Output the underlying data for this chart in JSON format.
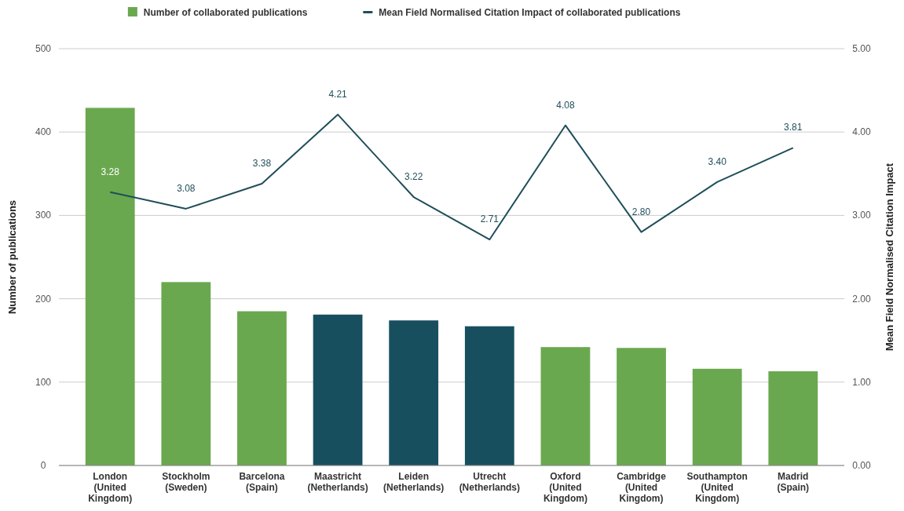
{
  "chart_data": {
    "type": "bar",
    "categories": [
      "London\n(United\nKingdom)",
      "Stockholm\n(Sweden)",
      "Barcelona\n(Spain)",
      "Maastricht\n(Netherlands)",
      "Leiden\n(Netherlands)",
      "Utrecht\n(Netherlands)",
      "Oxford\n(United\nKingdom)",
      "Cambridge\n(United\nKingdom)",
      "Southampton\n(United\nKingdom)",
      "Madrid\n(Spain)"
    ],
    "series": [
      {
        "name": "Number of collaborated publications",
        "color": "#6aa84f",
        "colors": [
          "#6aa84f",
          "#6aa84f",
          "#6aa84f",
          "#174f5f",
          "#174f5f",
          "#174f5f",
          "#6aa84f",
          "#6aa84f",
          "#6aa84f",
          "#6aa84f"
        ],
        "values": [
          429,
          220,
          185,
          181,
          174,
          167,
          142,
          141,
          116,
          113
        ]
      },
      {
        "name": "Mean Field Normalised Citation Impact of collaborated publications",
        "type": "line",
        "axis": "y2",
        "color": "#1f4e5a",
        "values": [
          3.28,
          3.08,
          3.38,
          4.21,
          3.22,
          2.71,
          4.08,
          2.8,
          3.4,
          3.81
        ],
        "value_labels": [
          "3.28",
          "3.08",
          "3.38",
          "4.21",
          "3.22",
          "2.71",
          "4.08",
          "2.80",
          "3.40",
          "3.81"
        ]
      }
    ],
    "ylabel": "Number of publications",
    "y2label": "Mean Field Normalised Citation Impact",
    "ylim": [
      0,
      500
    ],
    "yticks": [
      0,
      100,
      200,
      300,
      400,
      500
    ],
    "y2lim": [
      0,
      5
    ],
    "y2ticks": [
      {
        "value": 0,
        "label": "0.00"
      },
      {
        "value": 1,
        "label": "1.00"
      },
      {
        "value": 2,
        "label": "2.00"
      },
      {
        "value": 3,
        "label": "3.00"
      },
      {
        "value": 4,
        "label": "4.00"
      },
      {
        "value": 5,
        "label": "5.00"
      }
    ],
    "grid": "y",
    "legend": "top",
    "marker": "none",
    "line_style": "solid"
  }
}
